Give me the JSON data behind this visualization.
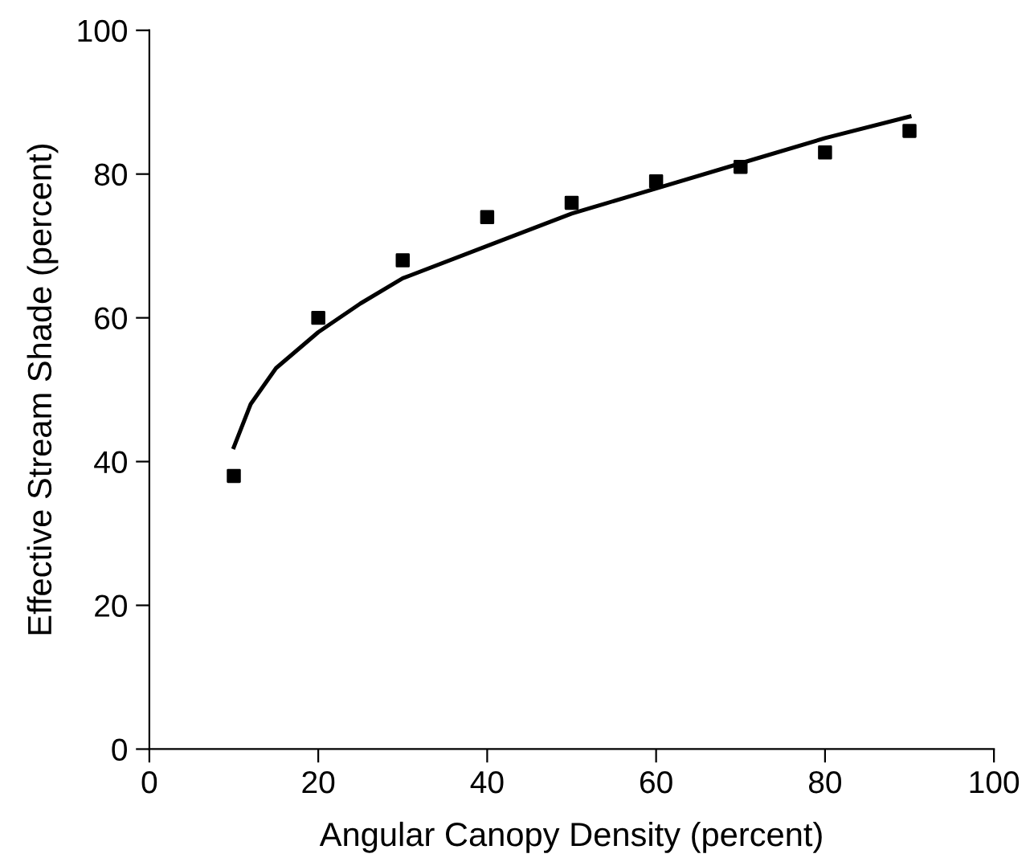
{
  "chart_data": {
    "type": "scatter",
    "xlabel": "Angular Canopy Density (percent)",
    "ylabel": "Effective Stream Shade (percent)",
    "xlim": [
      0,
      100
    ],
    "ylim": [
      0,
      100
    ],
    "xticks": [
      0,
      20,
      40,
      60,
      80,
      100
    ],
    "yticks": [
      0,
      20,
      40,
      60,
      80,
      100
    ],
    "grid": false,
    "legend": false,
    "series": [
      {
        "color": "#000000",
        "marker": "square",
        "x": [
          10,
          20,
          30,
          40,
          50,
          60,
          70,
          80,
          90
        ],
        "values": [
          38,
          60,
          68,
          74,
          76,
          79,
          81,
          83,
          86
        ]
      },
      {
        "type": "line",
        "color": "#000000",
        "marker": "none",
        "line_style": "solid",
        "x": [
          10,
          12,
          15,
          20,
          25,
          30,
          40,
          50,
          60,
          70,
          80,
          90
        ],
        "values": [
          42,
          48,
          53,
          58,
          62,
          65.5,
          70,
          74.5,
          78,
          81.5,
          85,
          88
        ]
      }
    ]
  }
}
